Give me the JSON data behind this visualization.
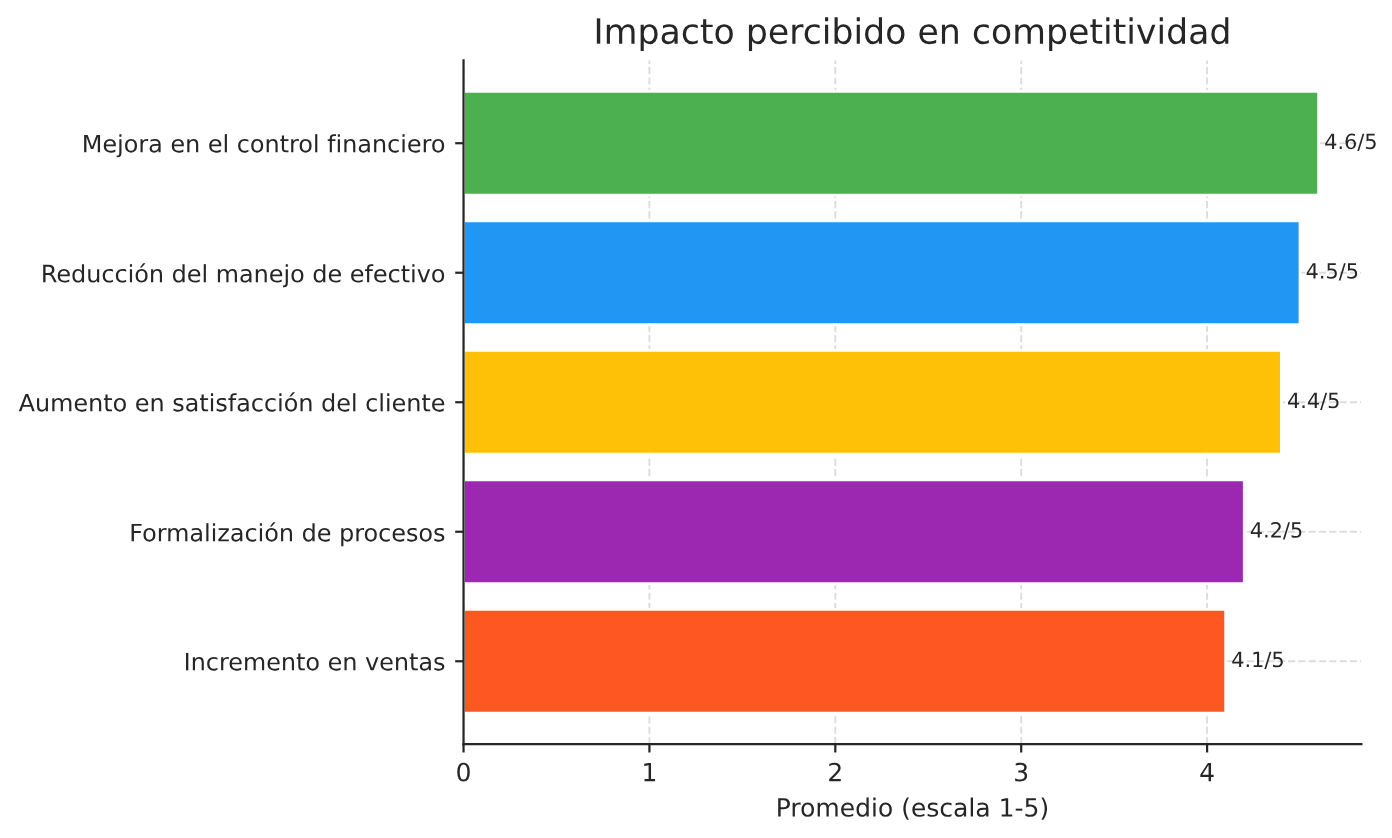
{
  "chart_data": {
    "type": "bar",
    "orientation": "horizontal",
    "title": "Impacto percibido en competitividad",
    "xlabel": "Promedio (escala 1-5)",
    "categories": [
      "Mejora en el control financiero",
      "Reducción del manejo de efectivo",
      "Aumento en satisfacción del cliente",
      "Formalización de procesos",
      "Incremento en ventas"
    ],
    "values": [
      4.6,
      4.5,
      4.4,
      4.2,
      4.1
    ],
    "colors": [
      "#4caf50",
      "#2196f3",
      "#ffc107",
      "#9c27b0",
      "#ff5722"
    ],
    "annotations": [
      {
        "text": "4.6/5",
        "x": 4.6,
        "y": "Mejora en el control financiero"
      },
      {
        "text": "4.5/5",
        "x": 4.5,
        "y": "Reducción del manejo de efectivo"
      },
      {
        "text": "4.4/5",
        "x": 4.4,
        "y": "Aumento en satisfacción del cliente"
      },
      {
        "text": "4.2/5",
        "x": 4.2,
        "y": "Formalización de procesos"
      },
      {
        "text": "4.1/5",
        "x": 4.1,
        "y": "Incremento en ventas"
      }
    ],
    "xlim": [
      0,
      4.83
    ],
    "xticks": [
      0,
      1,
      2,
      3,
      4
    ],
    "grid": true
  }
}
